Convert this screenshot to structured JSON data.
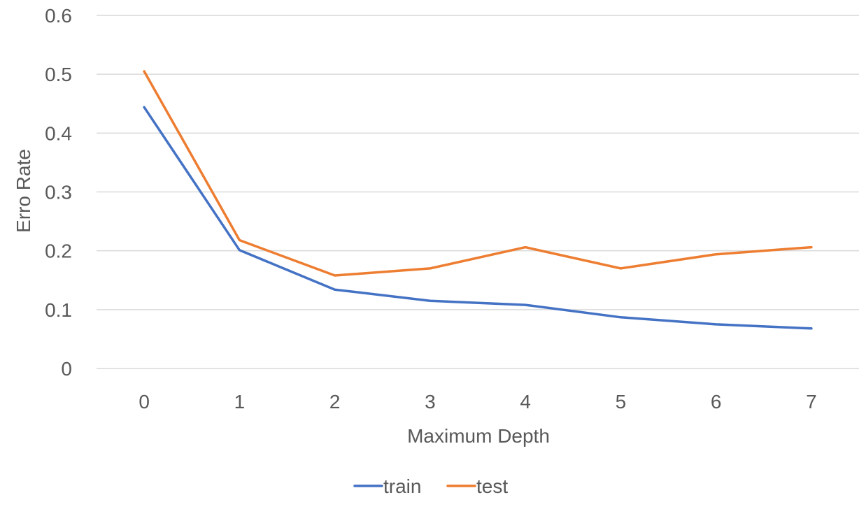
{
  "chart_data": {
    "type": "line",
    "xlabel": "Maximum Depth",
    "ylabel": "Erro Rate",
    "categories": [
      "0",
      "1",
      "2",
      "3",
      "4",
      "5",
      "6",
      "7"
    ],
    "ylim": [
      0,
      0.6
    ],
    "yticks": [
      "0",
      "0.1",
      "0.2",
      "0.3",
      "0.4",
      "0.5",
      "0.6"
    ],
    "grid": true,
    "legend_position": "bottom",
    "series": [
      {
        "name": "train",
        "color": "#4472C4",
        "values": [
          0.444,
          0.201,
          0.134,
          0.115,
          0.108,
          0.087,
          0.075,
          0.068
        ]
      },
      {
        "name": "test",
        "color": "#ED7D31",
        "values": [
          0.505,
          0.218,
          0.158,
          0.17,
          0.206,
          0.17,
          0.194,
          0.206
        ]
      }
    ]
  }
}
